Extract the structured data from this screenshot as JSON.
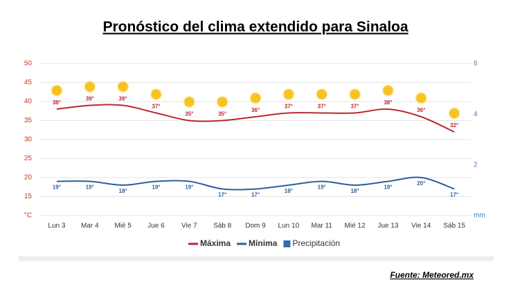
{
  "chart_data": {
    "type": "line",
    "title": "Pronóstico del clima extendido para Sinaloa",
    "source": "Fuente: Meteored.mx",
    "categories": [
      "Lun 3",
      "Mar 4",
      "Mié 5",
      "Jue 6",
      "Vie 7",
      "Sáb 8",
      "Dom 9",
      "Lun 10",
      "Mar 11",
      "Mié 12",
      "Jue 13",
      "Vie 14",
      "Sáb 15"
    ],
    "ylim": [
      10,
      50
    ],
    "yticks": [
      {
        "value": 10,
        "label": "°C"
      },
      15,
      20,
      25,
      30,
      35,
      40,
      45,
      50
    ],
    "y2lim": [
      0,
      6
    ],
    "y2ticks": [
      {
        "value": 0,
        "label": "mm"
      },
      2,
      4,
      6
    ],
    "grid": true,
    "legend": "bottom",
    "series": [
      {
        "name": "Máxima",
        "color": "#b8282e",
        "values": [
          38,
          39,
          39,
          37,
          35,
          35,
          36,
          37,
          37,
          37,
          38,
          36,
          32
        ],
        "value_labels": [
          "38°",
          "39°",
          "39°",
          "37°",
          "35°",
          "35°",
          "36°",
          "37°",
          "37°",
          "37°",
          "38°",
          "36°",
          "32°"
        ]
      },
      {
        "name": "Mínima",
        "color": "#2b5e9e",
        "values": [
          19,
          19,
          18,
          19,
          19,
          17,
          17,
          18,
          19,
          18,
          19,
          20,
          17
        ],
        "value_labels": [
          "19°",
          "19°",
          "18°",
          "19°",
          "19°",
          "17°",
          "17°",
          "18°",
          "19°",
          "18°",
          "19°",
          "20°",
          "17°"
        ]
      },
      {
        "name": "Precipitación",
        "color": "#2f6db3",
        "type": "bar",
        "axis": "y2",
        "values": [
          0,
          0,
          0,
          0,
          0,
          0,
          0,
          0,
          0,
          0,
          0,
          0,
          0
        ]
      }
    ]
  }
}
